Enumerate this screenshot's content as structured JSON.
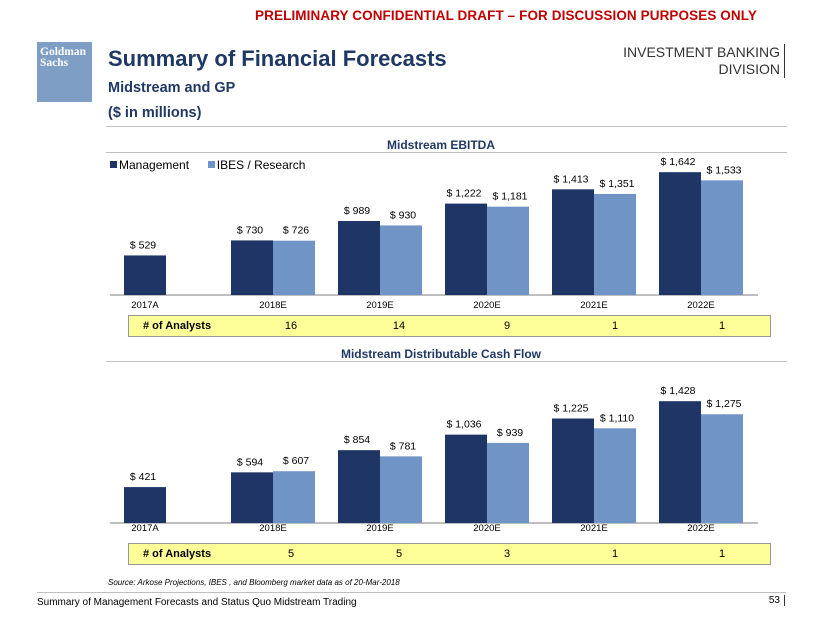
{
  "header": {
    "draft_notice": "PRELIMINARY CONFIDENTIAL DRAFT – FOR DISCUSSION PURPOSES ONLY",
    "logo_text": [
      "Goldman",
      "Sachs"
    ],
    "title": "Summary of Financial Forecasts",
    "subtitle": "Midstream and GP",
    "units": "($ in millions)",
    "division": [
      "INVESTMENT BANKING",
      "DIVISION"
    ]
  },
  "colors": {
    "management": "#1f3566",
    "ibes": "#7094c6",
    "analyst_bar": "#ffff99",
    "title_blue": "#1f3864",
    "draft_red": "#c00000"
  },
  "chart_data": [
    {
      "type": "bar",
      "title": "Midstream EBITDA",
      "categories": [
        "2017A",
        "2018E",
        "2019E",
        "2020E",
        "2021E",
        "2022E"
      ],
      "series": [
        {
          "name": "Management",
          "values": [
            529,
            730,
            989,
            1222,
            1413,
            1642
          ],
          "labels": [
            "$ 529",
            "$ 730",
            "$ 989",
            "$ 1,222",
            "$ 1,413",
            "$ 1,642"
          ]
        },
        {
          "name": "IBES / Research",
          "values": [
            null,
            726,
            930,
            1181,
            1351,
            1533
          ],
          "labels": [
            null,
            "$ 726",
            "$ 930",
            "$ 1,181",
            "$ 1,351",
            "$ 1,533"
          ]
        }
      ],
      "legend": "top-left",
      "analysts_label": "# of Analysts",
      "analysts": [
        "16",
        "14",
        "9",
        "1",
        "1"
      ]
    },
    {
      "type": "bar",
      "title": "Midstream Distributable Cash Flow",
      "categories": [
        "2017A",
        "2018E",
        "2019E",
        "2020E",
        "2021E",
        "2022E"
      ],
      "series": [
        {
          "name": "Management",
          "values": [
            421,
            594,
            854,
            1036,
            1225,
            1428
          ],
          "labels": [
            "$ 421",
            "$ 594",
            "$ 854",
            "$ 1,036",
            "$ 1,225",
            "$ 1,428"
          ]
        },
        {
          "name": "IBES / Research",
          "values": [
            null,
            607,
            781,
            939,
            1110,
            1275
          ],
          "labels": [
            null,
            "$ 607",
            "$ 781",
            "$ 939",
            "$ 1,110",
            "$ 1,275"
          ]
        }
      ],
      "analysts_label": "# of Analysts",
      "analysts": [
        "5",
        "5",
        "3",
        "1",
        "1"
      ]
    }
  ],
  "source": "Source: Arkose Projections, IBES , and Bloomberg market data as of 20-Mar-2018",
  "footer": {
    "left": "Summary of Management Forecasts and Status Quo Midstream Trading",
    "page": "53"
  }
}
